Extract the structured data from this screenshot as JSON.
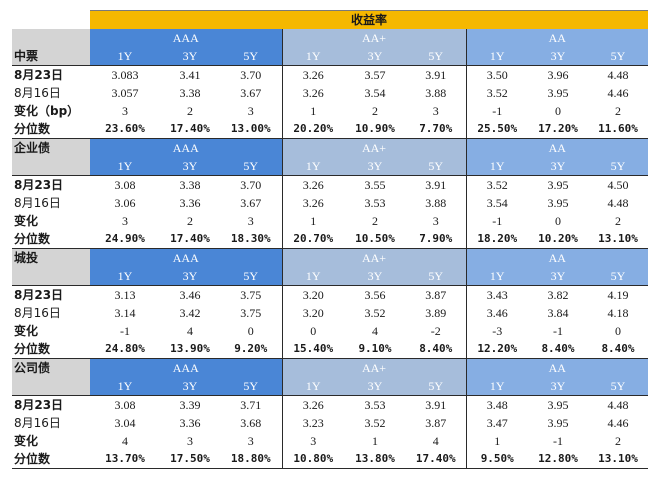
{
  "title": "收益率",
  "ratings": [
    "AAA",
    "AA+",
    "AA"
  ],
  "terms": [
    "1Y",
    "3Y",
    "5Y"
  ],
  "sections": [
    {
      "name": "中票",
      "rows": [
        {
          "label": "8月23日",
          "values": [
            "3.083",
            "3.41",
            "3.70",
            "3.26",
            "3.57",
            "3.91",
            "3.50",
            "3.96",
            "4.48"
          ]
        },
        {
          "label": "8月16日",
          "values": [
            "3.057",
            "3.38",
            "3.67",
            "3.26",
            "3.54",
            "3.88",
            "3.52",
            "3.95",
            "4.46"
          ]
        },
        {
          "label": "变化（bp）",
          "values": [
            "3",
            "2",
            "3",
            "1",
            "2",
            "3",
            "-1",
            "0",
            "2"
          ]
        },
        {
          "label": "分位数",
          "values": [
            "23.60%",
            "17.40%",
            "13.00%",
            "20.20%",
            "10.90%",
            "7.70%",
            "25.50%",
            "17.20%",
            "11.60%"
          ]
        }
      ]
    },
    {
      "name": "企业债",
      "rows": [
        {
          "label": "8月23日",
          "values": [
            "3.08",
            "3.38",
            "3.70",
            "3.26",
            "3.55",
            "3.91",
            "3.52",
            "3.95",
            "4.50"
          ]
        },
        {
          "label": "8月16日",
          "values": [
            "3.06",
            "3.36",
            "3.67",
            "3.26",
            "3.53",
            "3.88",
            "3.54",
            "3.95",
            "4.48"
          ]
        },
        {
          "label": "变化",
          "values": [
            "3",
            "2",
            "3",
            "1",
            "2",
            "3",
            "-1",
            "0",
            "2"
          ]
        },
        {
          "label": "分位数",
          "values": [
            "24.90%",
            "17.40%",
            "18.30%",
            "20.70%",
            "10.50%",
            "7.90%",
            "18.20%",
            "10.20%",
            "13.10%"
          ]
        }
      ]
    },
    {
      "name": "城投",
      "rows": [
        {
          "label": "8月23日",
          "values": [
            "3.13",
            "3.46",
            "3.75",
            "3.20",
            "3.56",
            "3.87",
            "3.43",
            "3.82",
            "4.19"
          ]
        },
        {
          "label": "8月16日",
          "values": [
            "3.14",
            "3.42",
            "3.75",
            "3.20",
            "3.52",
            "3.89",
            "3.46",
            "3.84",
            "4.18"
          ]
        },
        {
          "label": "变化",
          "values": [
            "-1",
            "4",
            "0",
            "0",
            "4",
            "-2",
            "-3",
            "-1",
            "0"
          ]
        },
        {
          "label": "分位数",
          "values": [
            "24.80%",
            "13.90%",
            "9.20%",
            "15.40%",
            "9.10%",
            "8.40%",
            "12.20%",
            "8.40%",
            "8.40%"
          ]
        }
      ]
    },
    {
      "name": "公司债",
      "rows": [
        {
          "label": "8月23日",
          "values": [
            "3.08",
            "3.39",
            "3.71",
            "3.26",
            "3.53",
            "3.91",
            "3.48",
            "3.95",
            "4.48"
          ]
        },
        {
          "label": "8月16日",
          "values": [
            "3.04",
            "3.36",
            "3.68",
            "3.23",
            "3.52",
            "3.87",
            "3.47",
            "3.95",
            "4.46"
          ]
        },
        {
          "label": "变化",
          "values": [
            "4",
            "3",
            "3",
            "3",
            "1",
            "4",
            "1",
            "-1",
            "2"
          ]
        },
        {
          "label": "分位数",
          "values": [
            "13.70%",
            "17.50%",
            "18.80%",
            "10.80%",
            "13.80%",
            "17.40%",
            "9.50%",
            "12.80%",
            "13.10%"
          ]
        }
      ]
    }
  ],
  "colors": {
    "title_bg": "#f5b800",
    "aaa_bg": "#4a86d6",
    "aa_plus_bg": "#a6bddb",
    "aa_bg": "#86aee3",
    "category_bg": "#d4d4d4"
  }
}
